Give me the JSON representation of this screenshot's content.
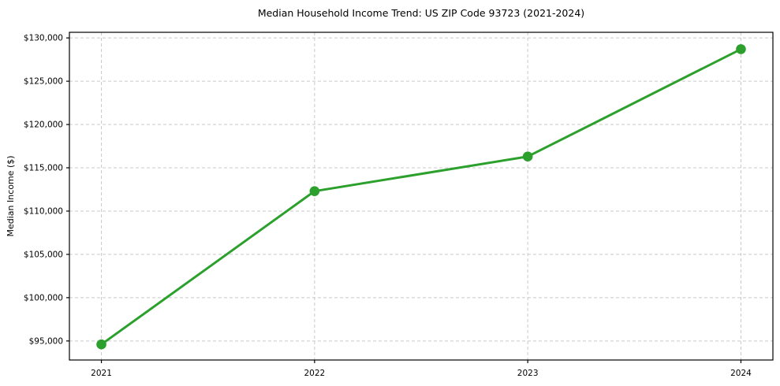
{
  "figure": {
    "background": "#ffffff"
  },
  "chart_data": {
    "type": "line",
    "title": "Median Household Income Trend: US ZIP Code 93723 (2021-2024)",
    "xlabel": "",
    "ylabel": "Median Income ($)",
    "categories": [
      2021,
      2022,
      2023,
      2024
    ],
    "x_tick_labels": [
      "2021",
      "2022",
      "2023",
      "2024"
    ],
    "series": [
      {
        "name": "Median Household Income",
        "values": [
          94600,
          112300,
          116300,
          128700
        ],
        "color": "#2ca02c",
        "marker": "circle",
        "line_width": 3,
        "marker_radius": 6.3
      }
    ],
    "y_ticks": [
      95000,
      100000,
      105000,
      110000,
      115000,
      120000,
      125000,
      130000
    ],
    "y_tick_labels": [
      "$95,000",
      "$100,000",
      "$105,000",
      "$110,000",
      "$115,000",
      "$120,000",
      "$125,000",
      "$130,000"
    ],
    "xlim": [
      2020.85,
      2024.15
    ],
    "ylim": [
      92800,
      130650
    ],
    "grid": true,
    "grid_style": "dashed",
    "grid_color": "#c9c9c9",
    "axis_color": "#000000",
    "text_color": "#000000",
    "legend": "none"
  }
}
